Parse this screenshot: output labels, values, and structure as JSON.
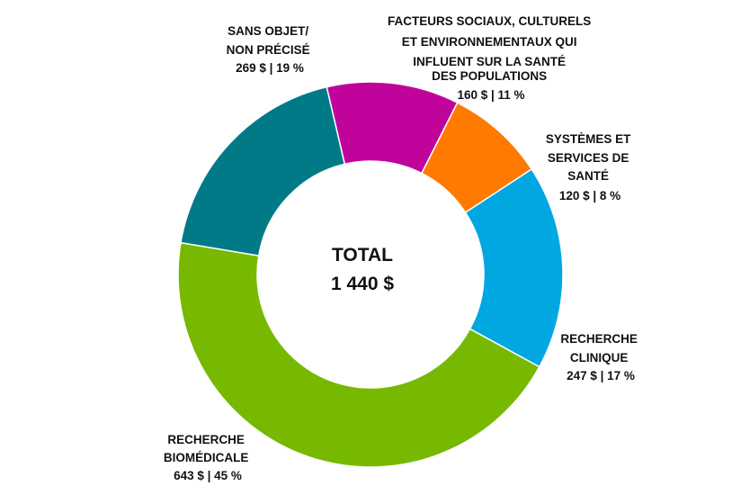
{
  "chart_data": {
    "type": "pie",
    "variant": "donut",
    "center": {
      "line1": "TOTAL",
      "line2": "1 440 $"
    },
    "slices": [
      {
        "key": "facteurs",
        "label_lines": [
          "FACTEURS SOCIAUX, CULTURELS",
          "ET ENVIRONNEMENTAUX QUI",
          "INFLUENT SUR LA SANTÉ",
          "DES POPULATIONS"
        ],
        "value_label": "160 $ | 11 %",
        "value": 160,
        "percent": 11,
        "color": "#c0049b"
      },
      {
        "key": "systemes",
        "label_lines": [
          "SYSTÈMES ET",
          "SERVICES DE",
          "SANTÉ"
        ],
        "value_label": "120 $ | 8 %",
        "value": 120,
        "percent": 8,
        "color": "#ff7a00"
      },
      {
        "key": "clinique",
        "label_lines": [
          "RECHERCHE",
          "CLINIQUE"
        ],
        "value_label": "247 $ | 17 %",
        "value": 247,
        "percent": 17,
        "color": "#00a7e1"
      },
      {
        "key": "biomedicale",
        "label_lines": [
          "RECHERCHE",
          "BIOMÉDICALE"
        ],
        "value_label": "643 $ | 45 %",
        "value": 643,
        "percent": 45,
        "color": "#76b900"
      },
      {
        "key": "sansobjet",
        "label_lines": [
          "SANS OBJET/",
          "NON PRÉCISÉ"
        ],
        "value_label": "269 $ | 19 %",
        "value": 269,
        "percent": 19,
        "color": "#007a87"
      }
    ]
  }
}
